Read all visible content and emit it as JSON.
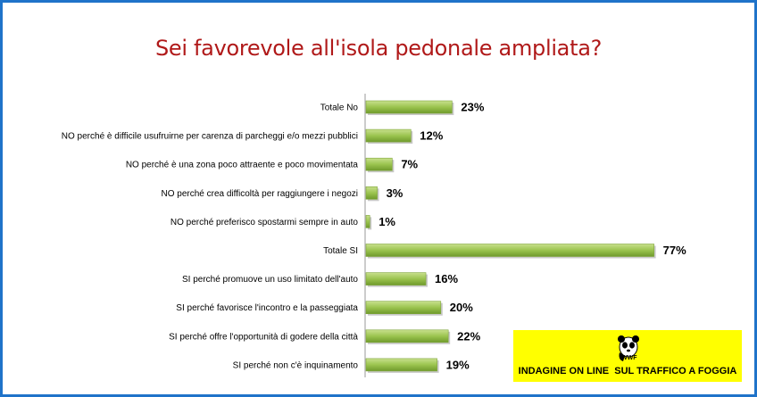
{
  "chart_data": {
    "type": "bar",
    "orientation": "horizontal",
    "title": "Sei favorevole all'isola pedonale ampliata?",
    "categories": [
      "Totale No",
      "NO perché è difficile usufruirne per carenza di parcheggi e/o mezzi pubblici",
      "NO perché è una zona poco attraente e poco movimentata",
      "NO perché crea difficoltà per raggiungere i negozi",
      "NO perché preferisco spostarmi sempre in auto",
      "Totale SI",
      "SI perché promuove un uso limitato dell'auto",
      "SI perché favorisce l'incontro e la passeggiata",
      "SI perché offre l'opportunità di godere della città",
      "SI perché non c'è inquinamento"
    ],
    "values": [
      23,
      12,
      7,
      3,
      1,
      77,
      16,
      20,
      22,
      19
    ],
    "value_labels": [
      "23%",
      "12%",
      "7%",
      "3%",
      "1%",
      "77%",
      "16%",
      "20%",
      "22%",
      "19%"
    ],
    "xlim": [
      0,
      80
    ],
    "grid": false,
    "bar_color": "#9bc44f"
  },
  "badge": {
    "logo_text": "WWF",
    "caption": "INDAGINE ON LINE  SUL TRAFFICO A FOGGIA",
    "background": "#ffff00"
  },
  "colors": {
    "title": "#b01919",
    "frame": "#1f73c9"
  }
}
